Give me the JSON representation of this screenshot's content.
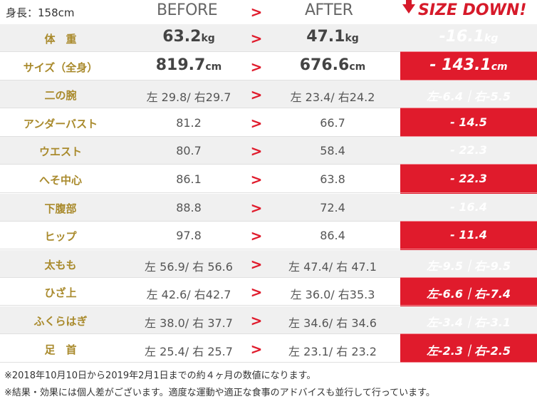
{
  "header": {
    "height_label": "身長：158cm",
    "before_label": "BEFORE",
    "arrow": ">",
    "after_label": "AFTER",
    "size_down_label": "SIZE DOWN!"
  },
  "rows": [
    {
      "label": "体　重",
      "before": "63.2",
      "after": "47.1",
      "unit": "kg",
      "diff": "-16.1",
      "diff_unit": "kg"
    },
    {
      "label": "サイズ（全身）",
      "before": "819.7",
      "after": "676.6",
      "unit": "cm",
      "diff": "- 143.1",
      "diff_unit": "cm"
    },
    {
      "label": "二の腕",
      "before": "左 29.8/ 右29.7",
      "after": "左 23.4/ 右24.2",
      "diff": "左-6.4｜右-5.5"
    },
    {
      "label": "アンダーバスト",
      "before": "81.2",
      "after": "66.7",
      "diff": "- 14.5"
    },
    {
      "label": "ウエスト",
      "before": "80.7",
      "after": "58.4",
      "diff": "- 22.3"
    },
    {
      "label": "へそ中心",
      "before": "86.1",
      "after": "63.8",
      "diff": "- 22.3"
    },
    {
      "label": "下腹部",
      "before": "88.8",
      "after": "72.4",
      "diff": "- 16.4"
    },
    {
      "label": "ヒップ",
      "before": "97.8",
      "after": "86.4",
      "diff": "- 11.4"
    },
    {
      "label": "太もも",
      "before": "左 56.9/ 右 56.6",
      "after": "左 47.4/ 右 47.1",
      "diff": "左-9.5｜右-9.5"
    },
    {
      "label": "ひざ上",
      "before": "左 42.6/ 右42.7",
      "after": "左 36.0/ 右35.3",
      "diff": "左-6.6｜右-7.4"
    },
    {
      "label": "ふくらはぎ",
      "before": "左 38.0/ 右 37.7",
      "after": "左 34.6/ 右 34.6",
      "diff": "左-3.4｜右-3.1"
    },
    {
      "label": "足　首",
      "before": "左 25.4/ 右 25.7",
      "after": "左 23.1/ 右 23.2",
      "diff": "左-2.3｜右-2.5"
    }
  ],
  "notes": [
    "※2018年10月10日から2019年2月1日までの約４ヶ月の数値になります。",
    "※結果・効果には個人差がございます。適度な運動や適正な食事のアドバイスも並行して行っています。"
  ],
  "colors": {
    "accent": "#e01b2c",
    "label_gold": "#a98a2c"
  }
}
